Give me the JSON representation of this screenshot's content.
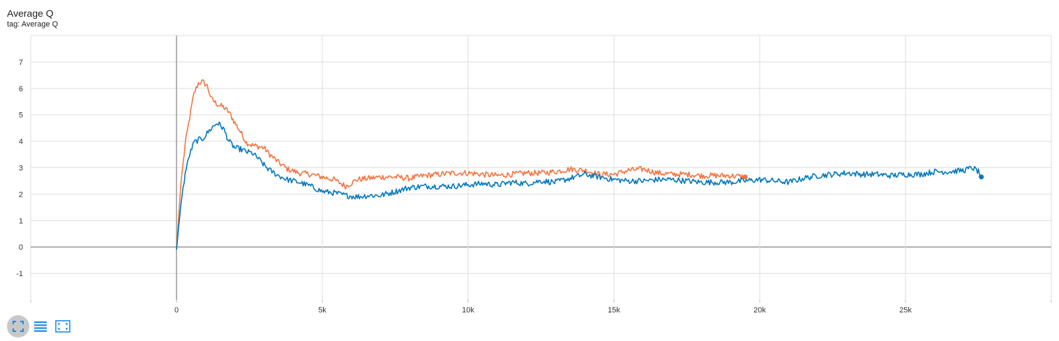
{
  "card": {
    "title": "Average Q",
    "subtitle": "tag: Average Q"
  },
  "toolbar": {
    "buttons": [
      {
        "icon": "fullscreen-icon"
      },
      {
        "icon": "data-table-icon"
      },
      {
        "icon": "fit-domain-icon"
      }
    ],
    "icon_color": "#1e88e5"
  },
  "chart_data": {
    "type": "line",
    "title": "Average Q",
    "xlabel": "",
    "ylabel": "",
    "xlim": [
      -5000,
      30000
    ],
    "ylim": [
      -2,
      8
    ],
    "x_ticks": [
      0,
      5000,
      10000,
      15000,
      20000,
      25000
    ],
    "x_tick_labels": [
      "0",
      "5k",
      "10k",
      "15k",
      "20k",
      "25k"
    ],
    "y_ticks": [
      -1,
      0,
      1,
      2,
      3,
      4,
      5,
      6,
      7
    ],
    "y_tick_labels": [
      "-1",
      "0",
      "1",
      "2",
      "3",
      "4",
      "5",
      "6",
      "7"
    ],
    "grid": true,
    "series": [
      {
        "color": "#f4733f",
        "x": [
          0,
          150,
          300,
          450,
          600,
          750,
          900,
          1050,
          1200,
          1400,
          1600,
          1800,
          2000,
          2200,
          2400,
          2600,
          2800,
          3000,
          3200,
          3500,
          3800,
          4200,
          4600,
          5000,
          5400,
          5800,
          6200,
          6600,
          7000,
          7500,
          8000,
          8500,
          9000,
          9500,
          10000,
          10500,
          11000,
          11500,
          12000,
          12500,
          13000,
          13500,
          14000,
          14500,
          15000,
          15500,
          16000,
          16500,
          17000,
          17500,
          18000,
          18500,
          19000,
          19500
        ],
        "y": [
          -0.1,
          2.4,
          3.9,
          4.9,
          5.8,
          6.2,
          6.25,
          6.1,
          5.6,
          5.4,
          5.3,
          5.1,
          4.7,
          4.35,
          3.95,
          3.85,
          3.8,
          3.75,
          3.5,
          3.2,
          2.95,
          2.8,
          2.75,
          2.65,
          2.55,
          2.3,
          2.55,
          2.6,
          2.65,
          2.65,
          2.6,
          2.7,
          2.75,
          2.8,
          2.8,
          2.75,
          2.7,
          2.75,
          2.8,
          2.8,
          2.85,
          2.95,
          2.9,
          2.75,
          2.75,
          2.9,
          2.95,
          2.8,
          2.75,
          2.75,
          2.7,
          2.7,
          2.7,
          2.65
        ]
      },
      {
        "color": "#0077bb",
        "x": [
          0,
          150,
          300,
          450,
          600,
          750,
          900,
          1050,
          1200,
          1400,
          1600,
          1800,
          2000,
          2200,
          2400,
          2600,
          2800,
          3000,
          3200,
          3500,
          3800,
          4200,
          4600,
          5000,
          5400,
          5800,
          6200,
          6600,
          7000,
          7500,
          8000,
          8500,
          9000,
          9500,
          10000,
          10500,
          11000,
          11500,
          12000,
          12500,
          13000,
          13500,
          14000,
          14500,
          15000,
          15500,
          16000,
          16500,
          17000,
          17500,
          18000,
          18500,
          19000,
          19500,
          20000,
          20500,
          21000,
          21500,
          22000,
          22500,
          23000,
          23500,
          24000,
          24500,
          25000,
          25500,
          26000,
          26500,
          27000,
          27300,
          27500,
          27600
        ],
        "y": [
          -0.1,
          1.6,
          2.8,
          3.5,
          3.95,
          4.05,
          4.1,
          4.3,
          4.5,
          4.7,
          4.5,
          4.0,
          3.75,
          3.7,
          3.6,
          3.55,
          3.35,
          3.1,
          2.9,
          2.7,
          2.55,
          2.45,
          2.3,
          2.1,
          2.05,
          1.95,
          1.9,
          1.95,
          1.95,
          2.1,
          2.25,
          2.3,
          2.3,
          2.3,
          2.35,
          2.4,
          2.35,
          2.45,
          2.4,
          2.5,
          2.45,
          2.6,
          2.75,
          2.65,
          2.55,
          2.5,
          2.5,
          2.55,
          2.55,
          2.5,
          2.45,
          2.45,
          2.45,
          2.5,
          2.55,
          2.5,
          2.45,
          2.6,
          2.7,
          2.75,
          2.8,
          2.75,
          2.75,
          2.7,
          2.75,
          2.75,
          2.85,
          2.85,
          2.9,
          3.0,
          2.85,
          2.65
        ]
      }
    ]
  }
}
